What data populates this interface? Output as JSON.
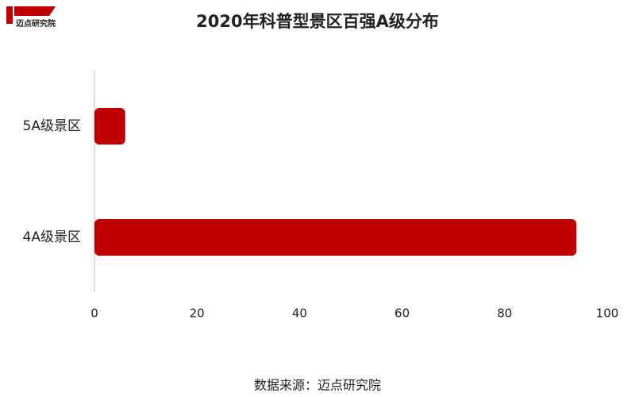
{
  "logo": "迈点研究院",
  "chart_data": {
    "type": "barh",
    "title": "2020年科普型景区百强A级分布",
    "categories": [
      "5A级景区",
      "4A级景区"
    ],
    "values": [
      6,
      94
    ],
    "color": "#c00000",
    "xlim": [
      0,
      100
    ],
    "xticks": [
      0,
      20,
      40,
      60,
      80,
      100
    ],
    "grid": false,
    "source": "数据来源：迈点研究院"
  }
}
